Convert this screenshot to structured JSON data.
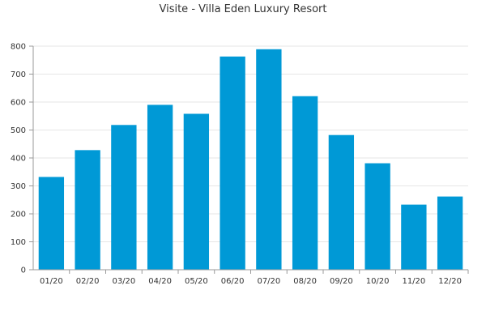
{
  "chart_data": {
    "type": "bar",
    "title": "Visite - Villa Eden Luxury Resort",
    "categories": [
      "01/20",
      "02/20",
      "03/20",
      "04/20",
      "05/20",
      "06/20",
      "07/20",
      "08/20",
      "09/20",
      "10/20",
      "11/20",
      "12/20"
    ],
    "values": [
      332,
      428,
      518,
      590,
      558,
      763,
      789,
      621,
      482,
      381,
      233,
      262
    ],
    "yticks": [
      "0",
      "100",
      "200",
      "300",
      "400",
      "500",
      "600",
      "700",
      "800"
    ],
    "ylim": [
      0,
      800
    ],
    "grid": true,
    "bar_color": "#0099d6"
  }
}
